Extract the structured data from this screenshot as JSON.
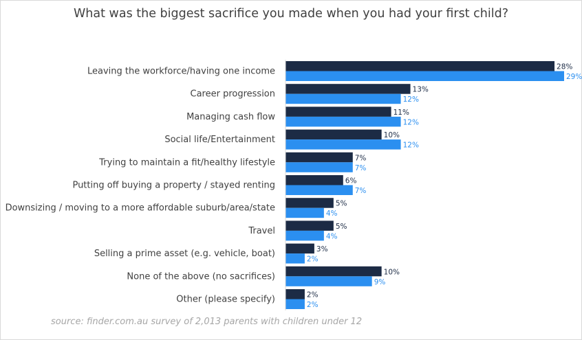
{
  "chart_data": {
    "type": "bar",
    "orientation": "horizontal",
    "title": "What was the biggest sacrifice you made when you had your first child?",
    "source": "source: finder.com.au survey of 2,013 parents with children under 12",
    "categories": [
      "Leaving the workforce/having one income",
      "Career progression",
      "Managing cash flow",
      "Social life/Entertainment",
      "Trying to maintain a fit/healthy lifestyle",
      "Putting off buying a property / stayed renting",
      "Downsizing / moving to a more affordable suburb/area/state",
      "Travel",
      "Selling a prime asset (e.g. vehicle, boat)",
      "None of the above (no sacrifices)",
      "Other (please specify)"
    ],
    "series": [
      {
        "color": "#1c2b45",
        "values": [
          28,
          13,
          11,
          10,
          7,
          6,
          5,
          5,
          3,
          10,
          2
        ],
        "labels": [
          "28%",
          "13%",
          "11%",
          "10%",
          "7%",
          "6%",
          "5%",
          "5%",
          "3%",
          "10%",
          "2%"
        ]
      },
      {
        "color": "#2b8ff0",
        "values": [
          29,
          12,
          12,
          12,
          7,
          7,
          4,
          4,
          2,
          9,
          2
        ],
        "labels": [
          "29%",
          "12%",
          "12%",
          "12%",
          "7%",
          "7%",
          "4%",
          "4%",
          "2%",
          "9%",
          "2%"
        ]
      }
    ],
    "xlim": [
      0,
      29
    ],
    "grid": false,
    "legend": "none"
  }
}
